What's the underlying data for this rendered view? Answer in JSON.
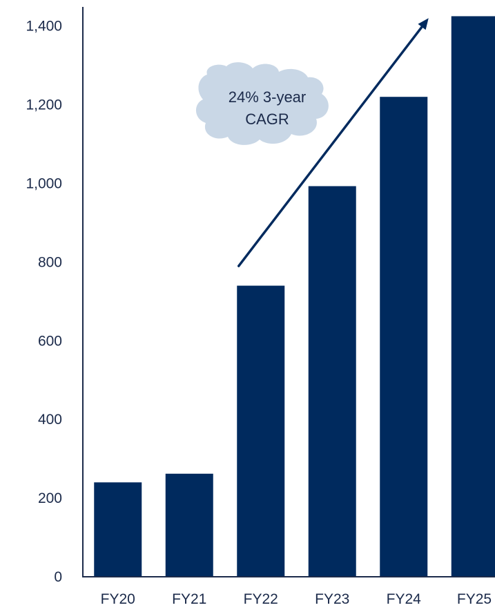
{
  "colors": {
    "bar": "#002a5e",
    "axis": "#1b2a4a",
    "annotation_fill": "#c9d7e6",
    "arrow": "#002a5e"
  },
  "chart_data": {
    "type": "bar",
    "title": "",
    "xlabel": "",
    "ylabel": "",
    "categories": [
      "FY20",
      "FY21",
      "FY22",
      "FY23",
      "FY24",
      "FY25"
    ],
    "values": [
      240,
      262,
      740,
      993,
      1220,
      1425
    ],
    "ylim": [
      0,
      1450
    ],
    "yticks": [
      0,
      200,
      400,
      600,
      800,
      1000,
      1200,
      1400
    ],
    "ytick_labels": [
      "0",
      "200",
      "400",
      "600",
      "800",
      "1,000",
      "1,200",
      "1,400"
    ],
    "grid": false,
    "legend": "none",
    "annotation": {
      "lines": [
        "24% 3-year",
        "CAGR"
      ],
      "arrow_from": {
        "category": "FY22",
        "value": 790
      },
      "arrow_to": {
        "category": "FY24",
        "value": 1420
      }
    }
  }
}
